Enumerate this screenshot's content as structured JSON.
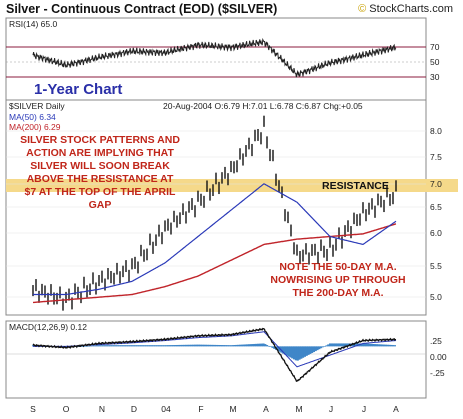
{
  "header": {
    "title": "Silver - Continuous Contract (EOD) ($SILVER)",
    "credit_symbol": "©",
    "credit_text": "StockCharts.com"
  },
  "colors": {
    "price": "#111111",
    "ma50": "#2a39b8",
    "ma200": "#c0242a",
    "annotation": "#c0261a",
    "resistance_band": "#f5d98a",
    "histogram": "#3f86c8"
  },
  "rsi_panel": {
    "label": "RSI(14) 65.0",
    "ticks": [
      "70",
      "50",
      "30"
    ],
    "tag": "1-Year Chart"
  },
  "price_panel": {
    "symbol_label": "$SILVER Daily",
    "quote": "20-Aug-2004 O:6.79 H:7.01 L:6.78 C:6.87 Chg:+0.05",
    "ma50_label": "MA(50) 6.34",
    "ma200_label": "MA(200) 6.29",
    "y_ticks": [
      "8.0",
      "7.5",
      "7.0",
      "6.5",
      "6.0",
      "5.5",
      "5.0"
    ],
    "annotation_lines": [
      "SILVER STOCK PATTERNS AND",
      "ACTION ARE IMPLYING THAT",
      "SILVER WILL SOON BREAK",
      "ABOVE THE RESISTANCE AT",
      "$7 AT THE TOP OF THE APRIL",
      "GAP"
    ],
    "resistance_label": "RESISTANCE",
    "note_lines": [
      "NOTE THE 50-DAY M.A.",
      "NOWRISING UP THROUGH",
      "THE 200-DAY M.A."
    ]
  },
  "macd_panel": {
    "label": "MACD(12,26,9) 0.12",
    "y_ticks": [
      ".25",
      "0.00",
      "-.25"
    ]
  },
  "x_axis": {
    "labels": [
      "S",
      "O",
      "N",
      "D",
      "04",
      "F",
      "M",
      "A",
      "M",
      "J",
      "J",
      "A"
    ]
  },
  "chart_data": {
    "type": "line",
    "title": "Silver - Continuous Contract (EOD) ($SILVER)",
    "x": [
      "Sep-03",
      "Oct-03",
      "Nov-03",
      "Dec-03",
      "Jan-04",
      "Feb-04",
      "Mar-04",
      "Apr-04",
      "May-04",
      "Jun-04",
      "Jul-04",
      "Aug-04"
    ],
    "series": [
      {
        "name": "$SILVER Daily",
        "values": [
          5.05,
          4.85,
          5.2,
          5.45,
          6.2,
          6.7,
          7.3,
          8.1,
          5.7,
          5.8,
          6.5,
          6.87
        ]
      },
      {
        "name": "MA(50) 6.34",
        "values": [
          4.95,
          4.95,
          5.05,
          5.2,
          5.55,
          6.05,
          6.55,
          7.05,
          6.7,
          6.05,
          5.9,
          6.34
        ]
      },
      {
        "name": "MA(200) 6.29",
        "values": [
          4.8,
          4.85,
          4.9,
          4.95,
          5.1,
          5.3,
          5.6,
          5.9,
          6.0,
          6.05,
          6.1,
          6.29
        ]
      }
    ],
    "rsi": [
      55,
      42,
      52,
      60,
      58,
      68,
      65,
      72,
      30,
      45,
      55,
      65.0
    ],
    "macd": [
      0.02,
      -0.02,
      0.05,
      0.08,
      0.12,
      0.18,
      0.2,
      0.3,
      -0.6,
      -0.1,
      0.1,
      0.12
    ],
    "signal": [
      0.0,
      0.0,
      0.03,
      0.06,
      0.1,
      0.15,
      0.18,
      0.25,
      -0.35,
      -0.15,
      0.05,
      0.1
    ],
    "resistance_level": 7.0,
    "ylim": [
      4.6,
      8.6
    ],
    "rsi_ylim": [
      0,
      100
    ],
    "macd_ylim": [
      -0.85,
      0.4
    ]
  }
}
